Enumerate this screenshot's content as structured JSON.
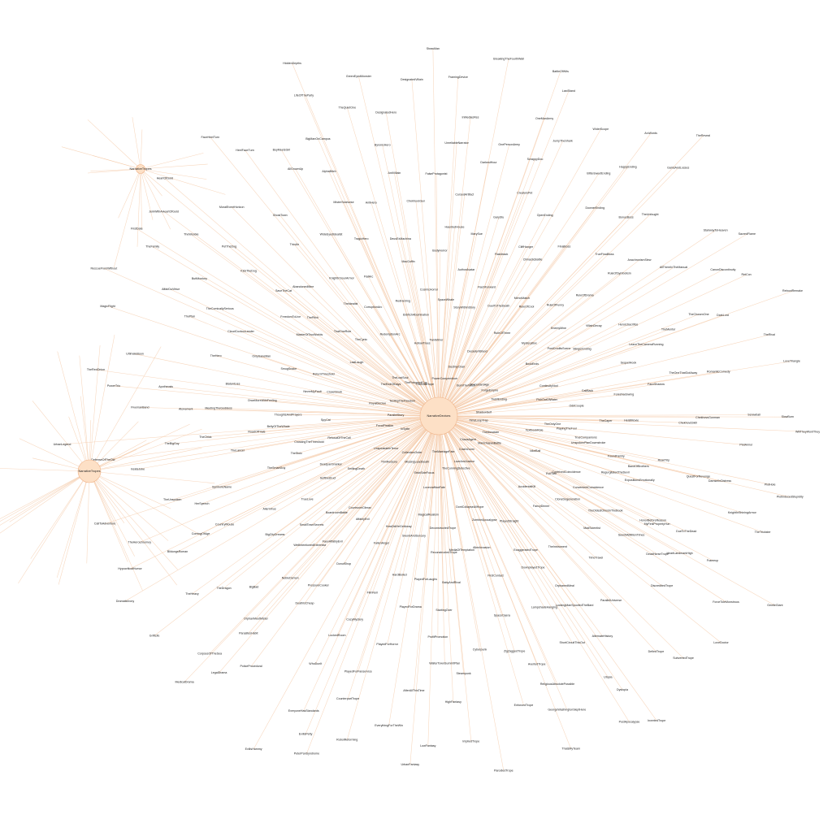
{
  "graph": {
    "node_color": "#fde0c6",
    "node_stroke": "#f0b48a",
    "edge_color": "#f4c8a6",
    "label_color": "#222222",
    "center": "NarrativeDevices",
    "hubs": [
      "NarrativeTropes",
      "NarrativeTropes"
    ],
    "right_hub": "NarrativeDevices",
    "inner_ring": [
      "TheAssassin",
      "ManichaeanBattle",
      "ChaosAgent",
      "CrashZoom",
      "LoveAndJustice",
      "TheCunningDetective",
      "TheMarriageFate",
      "LovecraftianFate",
      "StrictSideFocus",
      "MissingLeadDeath",
      "CollectionOrder",
      "ThinRedLine",
      "UnspeakableTerror",
      "InSpite",
      "FocalFixation",
      "ParallelStory",
      "RoyalDecree",
      "TestingTheFreedom",
      "TheEndOfDays",
      "TheLostSoul",
      "ThePoisonedCup",
      "FirstLastHope",
      "HollowTrees",
      "TwinMirror",
      "PowerCompendium",
      "DestinyChair",
      "DecadentBlood",
      "BurnTheWitch",
      "TheGoldenAge",
      "ForgeEmpire",
      "TwistEnding",
      "ShadowSelf",
      "TimeLoopTrap"
    ],
    "outer_ring": [
      "TextbookRole",
      "PlayingTheFool",
      "UnspokenPlanDownstroke",
      "RegurgitatedTheDevil",
      "ExpositionsEmotionally",
      "MyFirstPropertyHun",
      "HeartLandmarkHigh",
      "Frameup",
      "ForceToleMonstrous",
      "LoveDoctor",
      "AccidentalKill",
      "FancyDinner",
      "TheInstrument",
      "OrphanedMeal",
      "LockingManSpoofedTheBard",
      "ShortCircuitThisOut",
      "ReligiousAbsolutePossible",
      "GeorgeWashingtonSleptHere",
      "ThatsMyTeam",
      "DontCollapseAllHope",
      "MediaOfTemptation",
      "BabyAndRival",
      "StartingOver",
      "ProfitPromotion",
      "WalterTownSummitPlan",
      "AfterAllThisTime",
      "EverythingForTheWin",
      "RobotReforming",
      "PeterPanSyndrome",
      "HowDidHeGetAway",
      "FallenAngel",
      "DonutShop",
      "PressureCooker",
      "DeathIsCheap",
      "OrphanMeetMister",
      "ParasitesHabit",
      "CorpsesOfTheSea",
      "GriftLife",
      "SmilingDeath",
      "SelfDestruct",
      "TrueLove",
      "AlienVirus",
      "SymbolicName",
      "HerSpeech",
      "TheUnspoken",
      "InsideJoke",
      "DefenseOfTheOld",
      "UrbanLegend",
      "SpyCat",
      "ThoughtsAndPrayers",
      "OnceMoreWithFeeling",
      "BlatantLies",
      "TheHero",
      "ThePlan",
      "AffairDuVirtue",
      "TheFamily",
      "FirstDate",
      "LastLaugh",
      "ThatOneRule",
      "ThePitch",
      "AbandonedMine",
      "ThinAir",
      "GhostTown",
      "AllGrownUp",
      "BoyMeetsGirl",
      "LifeOfTheParty",
      "HiddenDepths",
      "RedHerring",
      "MacGuffin",
      "DeusExMachina",
      "ChekhovsGun",
      "FalseProtagonist",
      "UnreliableNarrator",
      "InMediasRes",
      "FramingDevice",
      "BreakingTheFourthWall",
      "StoryWithinStory",
      "FlashForward",
      "Flashback",
      "CliffHanger",
      "OpenEnding",
      "DownerEnding",
      "BittersweetEnding",
      "HappyEnding",
      "GainsAndLosses",
      "TheReveal",
      "MysteryBox",
      "EnemyMine",
      "VillainDecay",
      "HeroicSacrifice",
      "TheMentor",
      "TheChosenOne",
      "DarkLord",
      "TheRival",
      "LoveTriangle",
      "FishOutOfWater",
      "OddCouple",
      "TheCaper",
      "HeistMovie",
      "RoadTrip",
      "QuestForRevenge",
      "DamselInDistress",
      "KnightInShiningArmor",
      "TheTrickster",
      "GentleGiant",
      "EvilTwin",
      "CloneDegeneration",
      "MadScientist",
      "TimeTravel",
      "ParallelUniverse",
      "AlternateHistory",
      "Utopia",
      "Dystopia",
      "PostApocalypse",
      "ZombieApocalypse",
      "AlienInvasion",
      "FirstContact",
      "SpaceOpera",
      "Cyberpunk",
      "Steampunk",
      "HighFantasy",
      "LowFantasy",
      "UrbanFantasy",
      "MagicalRealism",
      "SwordAndSorcery",
      "HardBoiled",
      "FilmNoir",
      "CozyMystery",
      "LockedRoom",
      "WhoDunIt",
      "PoliceProcedural",
      "LegalDrama",
      "MedicalDrama",
      "CourtroomClimax",
      "BoardroomBattle",
      "SmallTownSecrets",
      "BigCityDreams",
      "CountryMouse",
      "ComingOfAge",
      "BildungsRoman",
      "TheHerosJourney",
      "CallToAdventure",
      "RefusalOfTheCall",
      "CrossingTheThreshold",
      "BellyOfTheWhale",
      "RoadOfTrials",
      "MeetingTheGoddess",
      "Atonement",
      "Apotheosis",
      "UltimateBoon",
      "MagicFlight",
      "RescueFromWithout",
      "ReturnThreshold",
      "MasterOfTwoWorlds",
      "FreedomToLive",
      "SaveTheCat",
      "KickTheDog",
      "PetTheDog",
      "MoralEventHorizon",
      "HeelFaceTurn",
      "FaceHeelTurn",
      "RedemptionArc",
      "CorruptionArc",
      "FlatArc",
      "TragicHero",
      "AntiHero",
      "AntiVillain",
      "ByronicHero",
      "DesignatedHero",
      "DesignatedVillain",
      "StrawMan",
      "SpaceWhale",
      "AuthorAvatar",
      "MarySue",
      "GaryStu",
      "CreatorsPet",
      "ScrappyDoo",
      "JumpTheShark",
      "WiderScope",
      "ArcWords",
      "RuleOfThree",
      "RuleOfCool",
      "RuleOfFunny",
      "RuleOfDrama",
      "RuleOfSymbolism",
      "AnachronismStew",
      "AllThereInTheManual",
      "CanonDiscontinuity",
      "RetCon",
      "RebootRemake",
      "ContinuityNod",
      "CallBack",
      "Foreshadowing",
      "FauxShadow",
      "ChekhovsSkill",
      "ChekhovsGunman",
      "PlotArmor",
      "PlotHole",
      "PlotInducedStupidity",
      "IdiotBall",
      "ContrivedCoincidence",
      "ConvenientCoincidence",
      "TheOldestOnesInTheBook",
      "SeenItAMillionTimes",
      "DeadHorseTrope",
      "DiscreditedTrope",
      "DefiedTrope",
      "SubvertedTrope",
      "InvertedTrope",
      "PlayedStraight",
      "ExaggeratedTrope",
      "DownplayedTrope",
      "LampshadeHanging",
      "ZigZaggedTrope",
      "AvertedTrope",
      "EnforcedTrope",
      "ImpliedTrope",
      "ParodiedTrope",
      "DeconstructedTrope",
      "ReconstructedTrope",
      "PlayedForLaughs",
      "PlayedForDrama",
      "PlayedForHorror",
      "PlayedForFanservice",
      "CounterpartTrope",
      "EveryoneHasStandards",
      "EvilIsPetty",
      "EvilIsHammy",
      "AffablyEvil",
      "FauxAffablyEvil",
      "WellIntentionedExtremist",
      "NobleDemon",
      "BigBad",
      "TheDragon",
      "TheHeavy",
      "HypocriticalHumor",
      "DramaticIrony",
      "DeadpanSnarker",
      "TheStoic",
      "TheSmartGuy",
      "TheLancer",
      "TheChick",
      "TheBigGuy",
      "FivemanBand",
      "PowerTrio",
      "TheRedOnion",
      "ClosetSnob",
      "NeverMyFault",
      "SmugSnake",
      "OnlySaneMan",
      "CloudCuckooLander",
      "TheComicallySerious",
      "ButtMonkey",
      "TheWoobie",
      "JerkWithAHeartOfGold",
      "HeartOfGold",
      "TheCynic",
      "TheIdealist",
      "KnightInSourArmor",
      "WideEyedIdealist",
      "MisterSeahorse",
      "AlphaBitch",
      "BigManOnCampus",
      "TheQuietOne",
      "GreenEyedMonster",
      "EldritchAbomination",
      "CosmicHorror",
      "BodyHorror",
      "HauntedHouse",
      "CursedArtifact",
      "DarkestHour",
      "OnePersonArmy",
      "OneManArmy",
      "LastStand",
      "BattleOfWits",
      "DuelToTheDeath",
      "MirrorMatch",
      "ClimacticBattle",
      "FinalBoss",
      "TrueFinalBoss",
      "BonusBoss",
      "TheUnfought",
      "StairwayToHeaven",
      "SacredFlame",
      "BookEnds",
      "PostCreditsScene",
      "StingerEnding",
      "SequelHook",
      "LeaveTheCameraRunning",
      "TheOneThatGotAway",
      "RomanticComedy",
      "Screwball",
      "SlowBurn",
      "WillTheyWontThey",
      "TheOnlyOne",
      "TrueCompanions",
      "FoundFamily",
      "BandOfBrothers",
      "HonorBeforeReason",
      "DueToTheDead"
    ]
  }
}
